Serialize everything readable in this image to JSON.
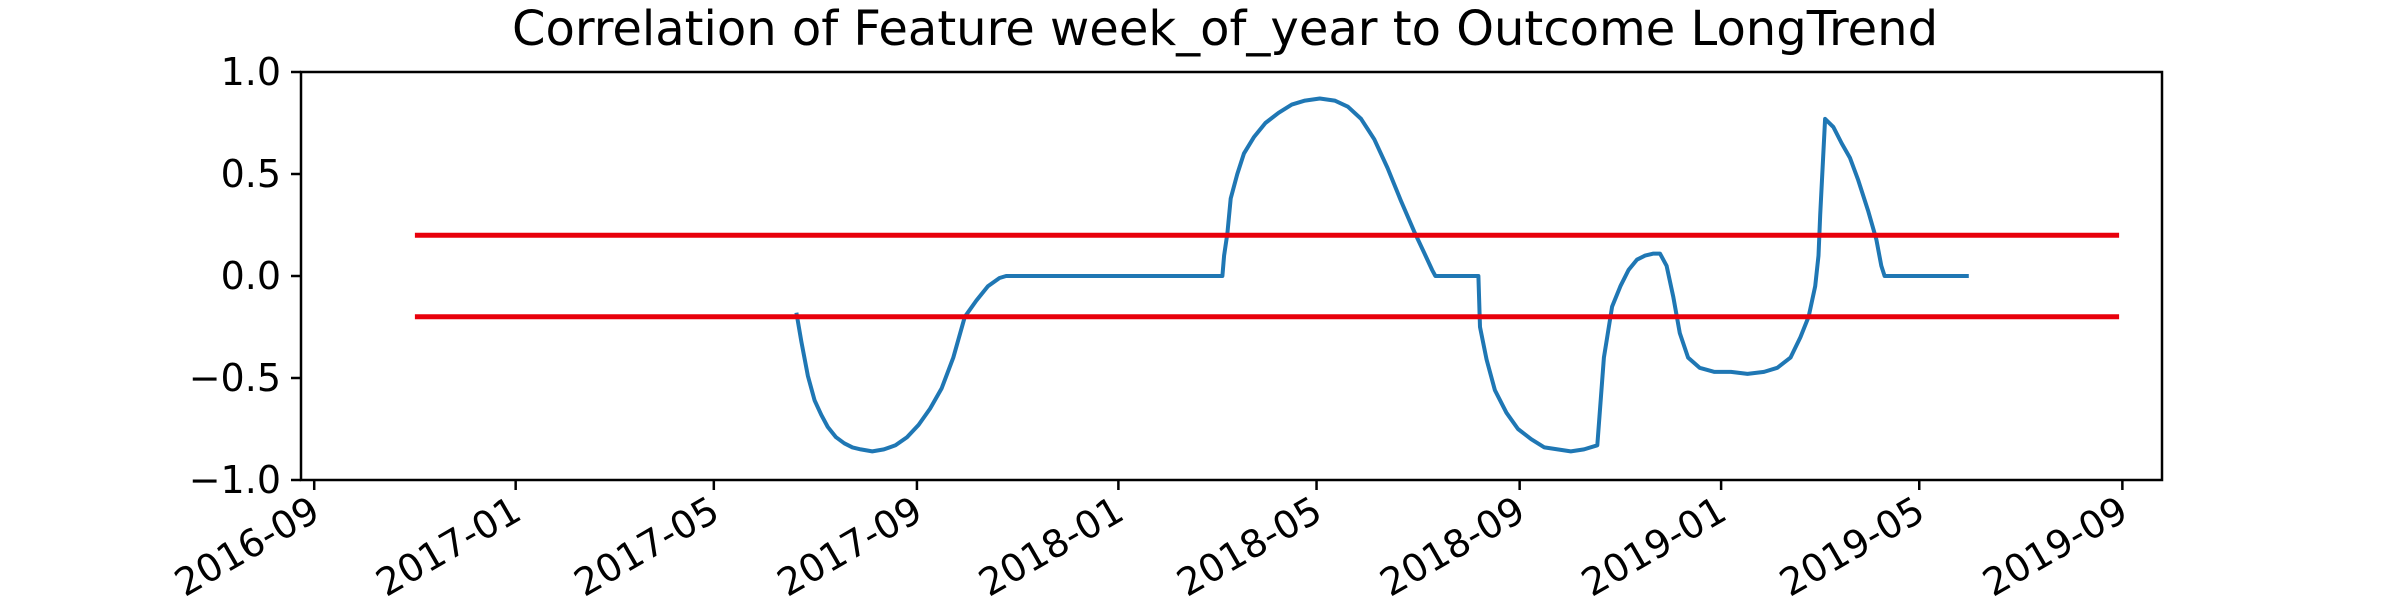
{
  "chart_data": {
    "type": "line",
    "title": "Correlation of Feature week_of_year to Outcome LongTrend",
    "xlabel": "",
    "ylabel": "",
    "xlim": [
      "2016-08-24",
      "2019-09-25"
    ],
    "ylim": [
      -1.0,
      1.0
    ],
    "x_ticks": [
      "2016-09",
      "2017-01",
      "2017-05",
      "2017-09",
      "2018-01",
      "2018-05",
      "2018-09",
      "2019-01",
      "2019-05",
      "2019-09"
    ],
    "y_ticks": [
      "1.0",
      "0.5",
      "0.0",
      "−0.5",
      "−1.0"
    ],
    "grid": false,
    "legend": "none",
    "series": [
      {
        "color": "#1f77b4",
        "x": [
          "2017-06-20",
          "2017-06-23",
          "2017-06-27",
          "2017-07-01",
          "2017-07-05",
          "2017-07-09",
          "2017-07-14",
          "2017-07-19",
          "2017-07-24",
          "2017-07-29",
          "2017-08-05",
          "2017-08-12",
          "2017-08-19",
          "2017-08-26",
          "2017-09-02",
          "2017-09-09",
          "2017-09-16",
          "2017-09-23",
          "2017-09-30",
          "2017-10-07",
          "2017-10-14",
          "2017-10-21",
          "2017-10-25",
          "2017-10-27",
          "2017-10-28",
          "2017-11-15",
          "2017-12-15",
          "2018-01-15",
          "2018-02-15",
          "2018-03-05",
          "2018-03-06",
          "2018-03-08",
          "2018-03-10",
          "2018-03-14",
          "2018-03-18",
          "2018-03-24",
          "2018-03-31",
          "2018-04-08",
          "2018-04-16",
          "2018-04-24",
          "2018-05-03",
          "2018-05-12",
          "2018-05-20",
          "2018-05-28",
          "2018-06-05",
          "2018-06-13",
          "2018-06-21",
          "2018-06-29",
          "2018-07-06",
          "2018-07-10",
          "2018-07-12",
          "2018-07-22",
          "2018-08-07",
          "2018-08-08",
          "2018-08-12",
          "2018-08-17",
          "2018-08-24",
          "2018-08-31",
          "2018-09-08",
          "2018-09-16",
          "2018-09-24",
          "2018-10-02",
          "2018-10-10",
          "2018-10-18",
          "2018-10-22",
          "2018-10-24",
          "2018-10-27",
          "2018-11-01",
          "2018-11-06",
          "2018-11-11",
          "2018-11-16",
          "2018-11-21",
          "2018-11-25",
          "2018-11-29",
          "2018-12-03",
          "2018-12-07",
          "2018-12-12",
          "2018-12-19",
          "2018-12-28",
          "2019-01-07",
          "2019-01-17",
          "2019-01-27",
          "2019-02-04",
          "2019-02-12",
          "2019-02-18",
          "2019-02-23",
          "2019-02-27",
          "2019-03-01",
          "2019-03-02",
          "2019-03-05",
          "2019-03-10",
          "2019-03-15",
          "2019-03-20",
          "2019-03-25",
          "2019-03-31",
          "2019-04-05",
          "2019-04-08",
          "2019-04-10",
          "2019-04-12",
          "2019-05-01",
          "2019-05-31"
        ],
        "y": [
          -0.18,
          -0.32,
          -0.49,
          -0.61,
          -0.68,
          -0.74,
          -0.79,
          -0.82,
          -0.84,
          -0.85,
          -0.86,
          -0.85,
          -0.83,
          -0.79,
          -0.73,
          -0.65,
          -0.55,
          -0.4,
          -0.2,
          -0.12,
          -0.05,
          -0.01,
          0.0,
          0.0,
          0.0,
          0.0,
          0.0,
          0.0,
          0.0,
          0.0,
          0.1,
          0.21,
          0.38,
          0.5,
          0.6,
          0.68,
          0.75,
          0.8,
          0.84,
          0.86,
          0.87,
          0.86,
          0.83,
          0.77,
          0.67,
          0.53,
          0.37,
          0.22,
          0.1,
          0.03,
          0.0,
          0.0,
          0.0,
          -0.25,
          -0.41,
          -0.56,
          -0.67,
          -0.75,
          -0.8,
          -0.84,
          -0.85,
          -0.86,
          -0.85,
          -0.83,
          -0.4,
          -0.3,
          -0.15,
          -0.05,
          0.03,
          0.08,
          0.1,
          0.11,
          0.11,
          0.05,
          -0.1,
          -0.28,
          -0.4,
          -0.45,
          -0.47,
          -0.47,
          -0.48,
          -0.47,
          -0.45,
          -0.4,
          -0.3,
          -0.2,
          -0.05,
          0.1,
          0.3,
          0.77,
          0.73,
          0.65,
          0.58,
          0.47,
          0.32,
          0.18,
          0.05,
          0.0,
          0.0,
          0.0,
          0.0
        ]
      },
      {
        "color": "#e8000b",
        "x": [
          "2016-11-01",
          "2019-08-30"
        ],
        "y": [
          0.2,
          0.2
        ]
      },
      {
        "color": "#e8000b",
        "x": [
          "2016-11-01",
          "2019-08-30"
        ],
        "y": [
          -0.2,
          -0.2
        ]
      }
    ]
  }
}
